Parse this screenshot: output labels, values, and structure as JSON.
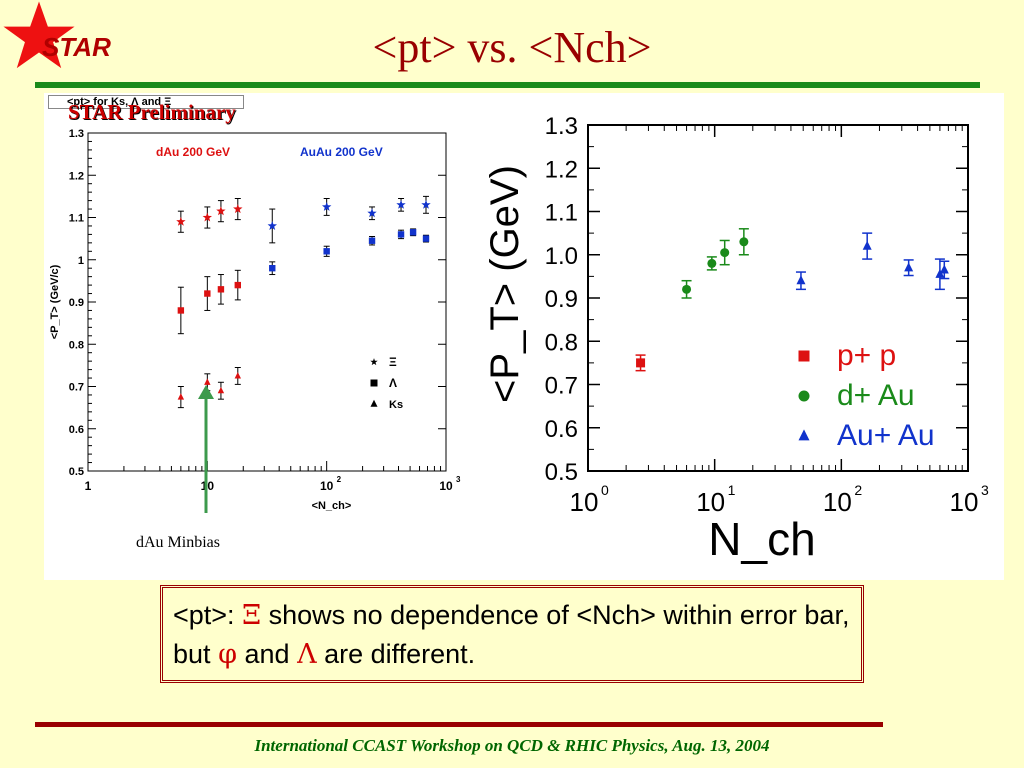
{
  "header": {
    "logo_text": "STAR",
    "title": "<pt> vs. <Nch>"
  },
  "left_chart_labels": {
    "legend_box": "<pt> for Ks, Λ and Ξ",
    "preliminary": "STAR Preliminary",
    "dAu_label": "dAu 200 GeV",
    "AuAu_label": "AuAu 200 GeV",
    "ylabel": "<P_T> (GeV/c)",
    "xlabel": "<N_ch>",
    "caption": "dAu Minbias",
    "legend": [
      "Ξ",
      "Λ",
      "Ks"
    ]
  },
  "callout": {
    "prefix": "<pt>:",
    "xi": "Ξ",
    "text1": "shows no dependence of <Nch> within error bar, but",
    "phi": "φ",
    "text2": "and",
    "lambda": "Λ",
    "text3": "are different."
  },
  "footer": "International CCAST Workshop on QCD & RHIC Physics, Aug. 13, 2004",
  "colors": {
    "red": "#dd1111",
    "blue": "#1133cc",
    "green": "#1a8a1a",
    "title": "#990000"
  },
  "chart_data": [
    {
      "type": "scatter",
      "title": "<pt> for Ks, Λ and Ξ",
      "xlabel": "<N_ch>",
      "ylabel": "<P_T> (GeV/c)",
      "xscale": "log",
      "xlim": [
        1,
        1000
      ],
      "ylim": [
        0.5,
        1.3
      ],
      "x_ticks": [
        "1",
        "10",
        "10^2",
        "10^3"
      ],
      "y_ticks": [
        "0.5",
        "0.6",
        "0.7",
        "0.8",
        "0.9",
        "1",
        "1.1",
        "1.2",
        "1.3"
      ],
      "series": [
        {
          "name": "Ξ",
          "marker": "star",
          "points": [
            {
              "x": 6,
              "y": 1.09,
              "err": 0.025,
              "system": "dAu"
            },
            {
              "x": 10,
              "y": 1.1,
              "err": 0.025,
              "system": "dAu"
            },
            {
              "x": 13,
              "y": 1.115,
              "err": 0.025,
              "system": "dAu"
            },
            {
              "x": 18,
              "y": 1.12,
              "err": 0.025,
              "system": "dAu"
            },
            {
              "x": 35,
              "y": 1.08,
              "err": 0.04,
              "system": "AuAu"
            },
            {
              "x": 100,
              "y": 1.125,
              "err": 0.02,
              "system": "AuAu"
            },
            {
              "x": 240,
              "y": 1.11,
              "err": 0.015,
              "system": "AuAu"
            },
            {
              "x": 420,
              "y": 1.13,
              "err": 0.015,
              "system": "AuAu"
            },
            {
              "x": 680,
              "y": 1.13,
              "err": 0.02,
              "system": "AuAu"
            }
          ]
        },
        {
          "name": "Λ",
          "marker": "square",
          "points": [
            {
              "x": 6,
              "y": 0.88,
              "err": 0.055,
              "system": "dAu"
            },
            {
              "x": 10,
              "y": 0.92,
              "err": 0.04,
              "system": "dAu"
            },
            {
              "x": 13,
              "y": 0.93,
              "err": 0.035,
              "system": "dAu"
            },
            {
              "x": 18,
              "y": 0.94,
              "err": 0.035,
              "system": "dAu"
            },
            {
              "x": 35,
              "y": 0.98,
              "err": 0.015,
              "system": "AuAu"
            },
            {
              "x": 100,
              "y": 1.02,
              "err": 0.012,
              "system": "AuAu"
            },
            {
              "x": 240,
              "y": 1.045,
              "err": 0.01,
              "system": "AuAu"
            },
            {
              "x": 420,
              "y": 1.06,
              "err": 0.01,
              "system": "AuAu"
            },
            {
              "x": 530,
              "y": 1.065,
              "err": 0.008,
              "system": "AuAu"
            },
            {
              "x": 680,
              "y": 1.05,
              "err": 0.008,
              "system": "AuAu"
            }
          ]
        },
        {
          "name": "Ks",
          "marker": "triangle",
          "points": [
            {
              "x": 6,
              "y": 0.675,
              "err": 0.025,
              "system": "dAu"
            },
            {
              "x": 10,
              "y": 0.71,
              "err": 0.02,
              "system": "dAu"
            },
            {
              "x": 13,
              "y": 0.69,
              "err": 0.02,
              "system": "dAu"
            },
            {
              "x": 18,
              "y": 0.725,
              "err": 0.02,
              "system": "dAu"
            }
          ]
        }
      ]
    },
    {
      "type": "scatter",
      "xlabel": "N_ch",
      "ylabel": "<P_T> (GeV)",
      "xscale": "log",
      "xlim": [
        1,
        1000
      ],
      "ylim": [
        0.5,
        1.3
      ],
      "x_ticks": [
        "10^0",
        "10^1",
        "10^2",
        "10^3"
      ],
      "y_ticks": [
        "0.5",
        "0.6",
        "0.7",
        "0.8",
        "0.9",
        "1.0",
        "1.1",
        "1.2",
        "1.3"
      ],
      "series": [
        {
          "name": "p+ p",
          "marker": "square",
          "color": "#dd1111",
          "points": [
            {
              "x": 2.6,
              "y": 0.75,
              "err": 0.018
            }
          ]
        },
        {
          "name": "d+ Au",
          "marker": "circle",
          "color": "#1a8a1a",
          "points": [
            {
              "x": 6,
              "y": 0.92,
              "err": 0.02
            },
            {
              "x": 9.5,
              "y": 0.98,
              "err": 0.015
            },
            {
              "x": 12,
              "y": 1.005,
              "err": 0.028
            },
            {
              "x": 17,
              "y": 1.03,
              "err": 0.03
            }
          ]
        },
        {
          "name": "Au+ Au",
          "marker": "triangle",
          "color": "#1133cc",
          "points": [
            {
              "x": 48,
              "y": 0.94,
              "err": 0.02
            },
            {
              "x": 160,
              "y": 1.02,
              "err": 0.03
            },
            {
              "x": 340,
              "y": 0.97,
              "err": 0.018
            },
            {
              "x": 600,
              "y": 0.955,
              "err": 0.035
            },
            {
              "x": 650,
              "y": 0.965,
              "err": 0.02
            }
          ]
        }
      ]
    }
  ]
}
